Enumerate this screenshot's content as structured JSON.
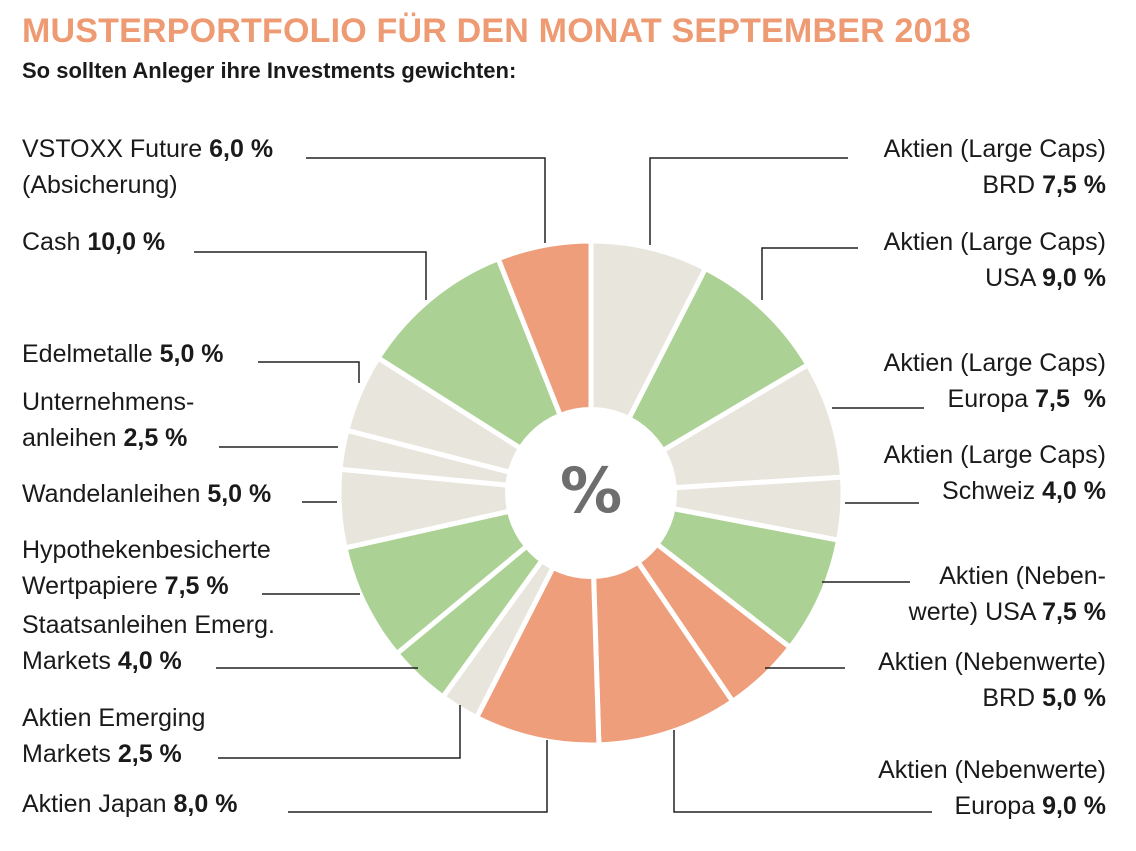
{
  "title": "MUSTERPORTFOLIO FÜR DEN MONAT SEPTEMBER 2018",
  "subtitle": "So sollten Anleger ihre Investments gewichten:",
  "center_symbol": "%",
  "colors": {
    "title": "#ee9a73",
    "beige": "#e8e5dd",
    "green": "#acd195",
    "salmon": "#ef9e7c",
    "line": "#222222"
  },
  "chart_data": {
    "type": "pie",
    "title": "MUSTERPORTFOLIO FÜR DEN MONAT SEPTEMBER 2018",
    "subtitle": "So sollten Anleger ihre Investments gewichten:",
    "unit": "%",
    "slices": [
      {
        "name": "Aktien (Large Caps) BRD",
        "value": 7.5,
        "label": "7,5 %",
        "color": "beige"
      },
      {
        "name": "Aktien (Large Caps) USA",
        "value": 9.0,
        "label": "9,0 %",
        "color": "green"
      },
      {
        "name": "Aktien (Large Caps) Europa",
        "value": 7.5,
        "label": "7,5  %",
        "color": "beige"
      },
      {
        "name": "Aktien (Large Caps) Schweiz",
        "value": 4.0,
        "label": "4,0 %",
        "color": "beige"
      },
      {
        "name": "Aktien (Nebenwerte) USA",
        "value": 7.5,
        "label": "7,5 %",
        "color": "green"
      },
      {
        "name": "Aktien (Nebenwerte) BRD",
        "value": 5.0,
        "label": "5,0 %",
        "color": "salmon"
      },
      {
        "name": "Aktien (Nebenwerte) Europa",
        "value": 9.0,
        "label": "9,0 %",
        "color": "salmon"
      },
      {
        "name": "Aktien Japan",
        "value": 8.0,
        "label": "8,0 %",
        "color": "salmon"
      },
      {
        "name": "Aktien Emerging Markets",
        "value": 2.5,
        "label": "2,5 %",
        "color": "beige"
      },
      {
        "name": "Staatsanleihen Emerg. Markets",
        "value": 4.0,
        "label": "4,0 %",
        "color": "green"
      },
      {
        "name": "Hypothekenbesicherte Wertpapiere",
        "value": 7.5,
        "label": "7,5 %",
        "color": "green"
      },
      {
        "name": "Wandelanleihen",
        "value": 5.0,
        "label": "5,0 %",
        "color": "beige"
      },
      {
        "name": "Unternehmensanleihen",
        "value": 2.5,
        "label": "2,5 %",
        "color": "beige"
      },
      {
        "name": "Edelmetalle",
        "value": 5.0,
        "label": "5,0 %",
        "color": "beige"
      },
      {
        "name": "Cash",
        "value": 10.0,
        "label": "10,0 %",
        "color": "green"
      },
      {
        "name": "VSTOXX Future (Absicherung)",
        "value": 6.0,
        "label": "6,0 %",
        "color": "salmon"
      }
    ]
  },
  "labels": {
    "lc_brd": {
      "line1": "Aktien (Large Caps)",
      "line2": "BRD",
      "value": "7,5 %"
    },
    "lc_usa": {
      "line1": "Aktien (Large Caps)",
      "line2": "USA",
      "value": "9,0 %"
    },
    "lc_eur": {
      "line1": "Aktien (Large Caps)",
      "line2": "Europa",
      "value": "7,5  %"
    },
    "lc_ch": {
      "line1": "Aktien (Large Caps)",
      "line2": "Schweiz",
      "value": "4,0 %"
    },
    "nw_usa": {
      "line1": "Aktien (Neben-",
      "line2": "werte) USA",
      "value": "7,5 %"
    },
    "nw_brd": {
      "line1": "Aktien (Nebenwerte)",
      "line2": "BRD",
      "value": "5,0 %"
    },
    "nw_eur": {
      "line1": "Aktien (Nebenwerte)",
      "line2": "Europa",
      "value": "9,0 %"
    },
    "japan": {
      "line1": "Aktien Japan",
      "value": "8,0 %"
    },
    "em_aktien": {
      "line1": "Aktien Emerging",
      "line2": "Markets",
      "value": "2,5 %"
    },
    "em_staat": {
      "line1": "Staatsanleihen Emerg.",
      "line2": "Markets",
      "value": "4,0 %"
    },
    "hypo": {
      "line1": "Hypothekenbesicherte",
      "line2": "Wertpapiere",
      "value": "7,5 %"
    },
    "wandel": {
      "line1": "Wandelanleihen",
      "value": "5,0 %"
    },
    "unternehmen": {
      "line1": "Unternehmens-",
      "line2": "anleihen",
      "value": "2,5 %"
    },
    "edel": {
      "line1": "Edelmetalle",
      "value": "5,0 %"
    },
    "cash": {
      "line1": "Cash",
      "value": "10,0 %"
    },
    "vstoxx": {
      "line1": "VSTOXX Future",
      "value": "6,0 %",
      "line2": "(Absicherung)"
    }
  }
}
